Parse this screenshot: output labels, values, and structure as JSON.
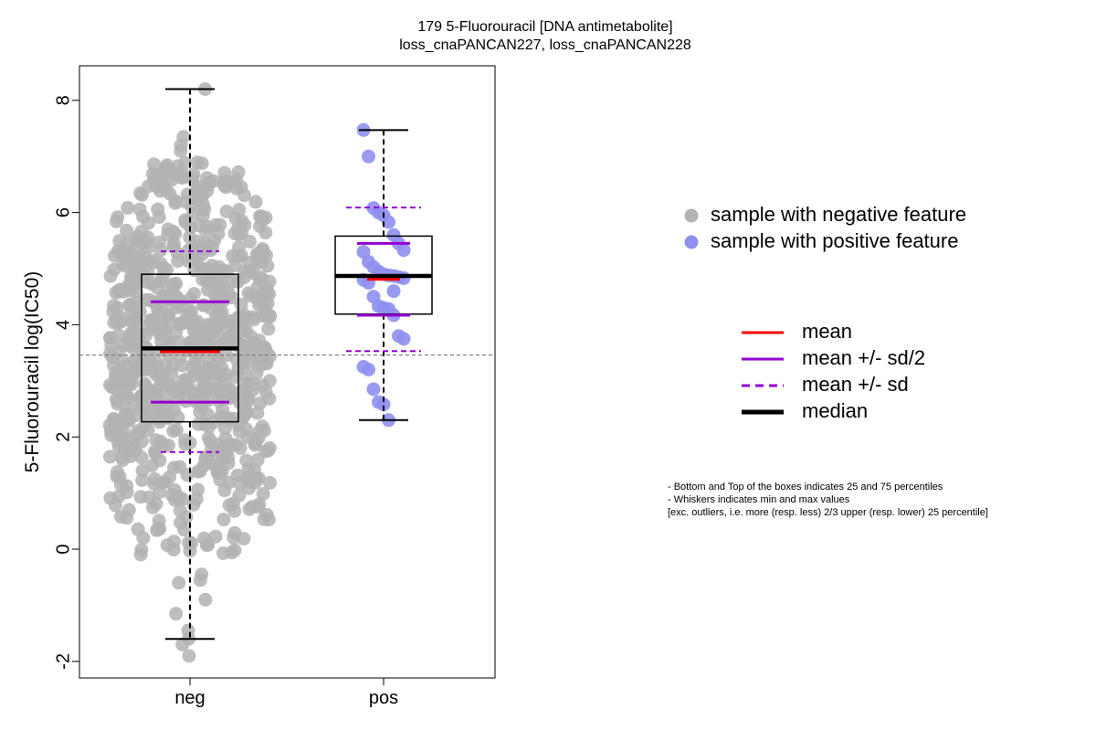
{
  "chart_data": {
    "type": "box",
    "title": "179 5-Fluorouracil [DNA antimetabolite]",
    "subtitle": "loss_cnaPANCAN227, loss_cnaPANCAN228",
    "xlabel": "",
    "ylabel": "5-Fluorouracil log(IC50)",
    "ylim": [
      -2.3,
      8.6
    ],
    "yticks": [
      -2,
      0,
      2,
      4,
      6,
      8
    ],
    "categories": [
      "neg",
      "pos"
    ],
    "reference_line_y": 3.46,
    "grid": false,
    "groups": [
      {
        "category": "neg",
        "color": "#b3b3b3",
        "n_approx": 800,
        "min": -1.6,
        "q1": 2.27,
        "median": 3.58,
        "q3": 4.9,
        "max": 8.2,
        "mean": 3.52,
        "mean_minus_half_sd": 2.62,
        "mean_plus_half_sd": 4.41,
        "mean_minus_sd": 1.73,
        "mean_plus_sd": 5.31,
        "extreme_points": [
          8.2,
          7.35,
          7.2,
          7.1,
          -1.45,
          -1.6,
          -1.7,
          -1.9,
          -1.15,
          -0.9,
          -0.6,
          -0.55,
          -0.45
        ]
      },
      {
        "category": "pos",
        "color": "#8f8ff0",
        "n": 34,
        "min": 2.3,
        "q1": 4.19,
        "median": 4.87,
        "q3": 5.58,
        "max": 7.47,
        "mean": 4.81,
        "mean_minus_half_sd": 4.17,
        "mean_plus_half_sd": 5.45,
        "mean_minus_sd": 3.53,
        "mean_plus_sd": 6.09,
        "points": [
          7.47,
          7.0,
          6.08,
          6.0,
          5.95,
          5.83,
          5.6,
          5.45,
          5.33,
          5.3,
          5.12,
          5.03,
          4.95,
          4.9,
          4.88,
          4.87,
          4.85,
          4.83,
          4.8,
          4.75,
          4.5,
          4.33,
          4.3,
          4.28,
          4.17,
          3.8,
          3.75,
          3.25,
          3.2,
          2.85,
          2.62,
          2.58,
          2.3,
          4.6
        ]
      }
    ],
    "legend_points": [
      {
        "label": "sample with negative feature",
        "color": "#b3b3b3"
      },
      {
        "label": "sample with positive feature",
        "color": "#8f8ff0"
      }
    ],
    "legend_lines": [
      {
        "label": "mean",
        "color": "#ff0000",
        "style": "solid"
      },
      {
        "label": "mean +/- sd/2",
        "color": "#9400d3",
        "style": "solid"
      },
      {
        "label": "mean +/- sd",
        "color": "#9400d3",
        "style": "dashed"
      },
      {
        "label": "median",
        "color": "#000000",
        "style": "bold"
      }
    ],
    "legend_placement": "right",
    "notes": [
      "- Bottom and Top of the boxes indicates 25 and 75 percentiles",
      "- Whiskers indicates min and max values",
      "[exc. outliers, i.e. more (resp. less) 2/3 upper (resp. lower) 25 percentile]"
    ]
  }
}
